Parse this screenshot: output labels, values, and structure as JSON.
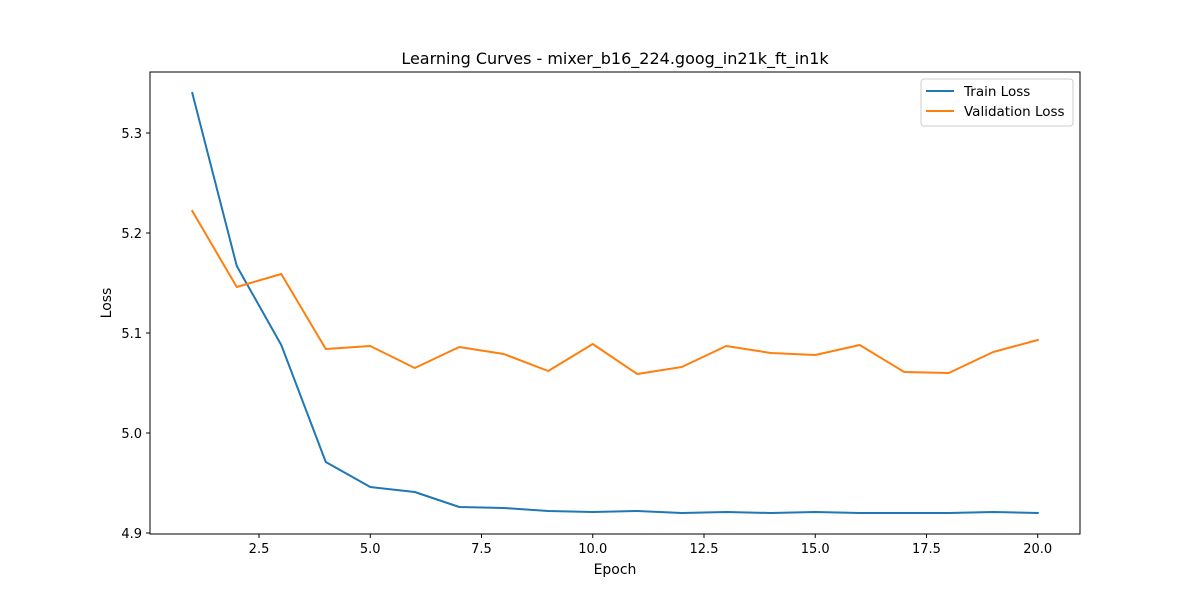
{
  "chart_data": {
    "type": "line",
    "title": "Learning Curves - mixer_b16_224.goog_in21k_ft_in1k",
    "xlabel": "Epoch",
    "ylabel": "Loss",
    "xlim": [
      0.05,
      20.95
    ],
    "ylim": [
      4.899,
      5.361
    ],
    "x_ticks": [
      2.5,
      5.0,
      7.5,
      10.0,
      12.5,
      15.0,
      17.5,
      20.0
    ],
    "x_tick_labels": [
      "2.5",
      "5.0",
      "7.5",
      "10.0",
      "12.5",
      "15.0",
      "17.5",
      "20.0"
    ],
    "y_ticks": [
      4.9,
      5.0,
      5.1,
      5.2,
      5.3
    ],
    "y_tick_labels": [
      "4.9",
      "5.0",
      "5.1",
      "5.2",
      "5.3"
    ],
    "grid": false,
    "legend_position": "top-right",
    "x": [
      1,
      2,
      3,
      4,
      5,
      6,
      7,
      8,
      9,
      10,
      11,
      12,
      13,
      14,
      15,
      16,
      17,
      18,
      19,
      20
    ],
    "series": [
      {
        "name": "Train Loss",
        "color": "#1f77b4",
        "values": [
          5.34,
          5.167,
          5.088,
          4.971,
          4.946,
          4.941,
          4.926,
          4.925,
          4.922,
          4.921,
          4.922,
          4.92,
          4.921,
          4.92,
          4.921,
          4.92,
          4.92,
          4.92,
          4.921,
          4.92
        ]
      },
      {
        "name": "Validation Loss",
        "color": "#ff7f0e",
        "values": [
          5.222,
          5.146,
          5.159,
          5.084,
          5.087,
          5.065,
          5.086,
          5.079,
          5.062,
          5.089,
          5.059,
          5.066,
          5.087,
          5.08,
          5.078,
          5.088,
          5.061,
          5.06,
          5.081,
          5.093
        ]
      }
    ]
  }
}
